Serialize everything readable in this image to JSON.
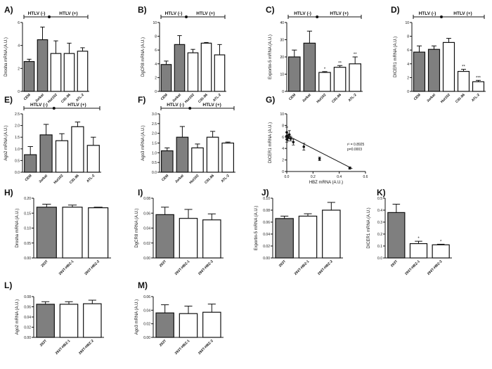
{
  "figure": {
    "title": "HTLV-1 miRNA machinery figure"
  },
  "colors": {
    "gray": "#7f7f7f",
    "white": "#ffffff",
    "ink": "#111111"
  },
  "chart_data": [
    {
      "id": "A",
      "label": "A)",
      "type": "bar",
      "ylabel": "Drosha mRNA (A.U.)",
      "ylim": [
        0,
        6
      ],
      "yticks": [
        0,
        2,
        4,
        6
      ],
      "categories": [
        "CEM",
        "Jurkat",
        "Hut102",
        "C91-86",
        "ATL-2"
      ],
      "values": [
        2.6,
        4.5,
        3.3,
        3.3,
        3.5
      ],
      "errors": [
        0.2,
        1.1,
        1.1,
        0.9,
        0.3
      ],
      "fill": [
        "gray",
        "gray",
        "white",
        "white",
        "white"
      ],
      "significance": [
        "",
        "",
        "",
        "",
        ""
      ],
      "groups": [
        {
          "label": "HTLV (-)",
          "from": 0,
          "to": 1
        },
        {
          "label": "HTLV (+)",
          "from": 2,
          "to": 4
        }
      ]
    },
    {
      "id": "B",
      "label": "B)",
      "type": "bar",
      "ylabel": "DgCR8 mRNA (A.U.)",
      "ylim": [
        0,
        10
      ],
      "yticks": [
        0,
        2,
        4,
        6,
        8,
        10
      ],
      "categories": [
        "CEM",
        "Jurkat",
        "Hut102",
        "C91-86",
        "ATL-2"
      ],
      "values": [
        3.9,
        6.8,
        5.6,
        7.0,
        5.3
      ],
      "errors": [
        0.5,
        1.3,
        0.5,
        0.1,
        1.5
      ],
      "fill": [
        "gray",
        "gray",
        "white",
        "white",
        "white"
      ],
      "significance": [
        "",
        "",
        "",
        "",
        ""
      ],
      "groups": [
        {
          "label": "HTLV (-)",
          "from": 0,
          "to": 1
        },
        {
          "label": "HTLV (+)",
          "from": 2,
          "to": 4
        }
      ]
    },
    {
      "id": "C",
      "label": "C)",
      "type": "bar",
      "ylabel": "Exportin-5 mRNA (A.U.)",
      "ylim": [
        0,
        40
      ],
      "yticks": [
        0,
        10,
        20,
        30,
        40
      ],
      "categories": [
        "CEM",
        "Jurkat",
        "Hut102",
        "C91-86",
        "ATL-2"
      ],
      "values": [
        20,
        28,
        11,
        14,
        16
      ],
      "errors": [
        4,
        7,
        0.5,
        1,
        4
      ],
      "fill": [
        "gray",
        "gray",
        "white",
        "white",
        "white"
      ],
      "significance": [
        "",
        "",
        "*",
        "**",
        "**"
      ],
      "groups": [
        {
          "label": "HTLV (-)",
          "from": 0,
          "to": 1
        },
        {
          "label": "HTLV (+)",
          "from": 2,
          "to": 4
        }
      ]
    },
    {
      "id": "D",
      "label": "D)",
      "type": "bar",
      "ylabel": "DICER1 mRNA (A.U.)",
      "ylim": [
        0,
        10
      ],
      "yticks": [
        0,
        2,
        4,
        6,
        8,
        10
      ],
      "categories": [
        "CEM",
        "Jurkat",
        "Hut102",
        "C91-86",
        "ATL-2"
      ],
      "values": [
        5.7,
        6.1,
        7.1,
        2.9,
        1.4
      ],
      "errors": [
        0.9,
        0.5,
        0.6,
        0.3,
        0.2
      ],
      "fill": [
        "gray",
        "gray",
        "white",
        "white",
        "white"
      ],
      "significance": [
        "",
        "",
        "",
        "**",
        "***"
      ],
      "groups": [
        {
          "label": "HTLV (-)",
          "from": 0,
          "to": 1
        },
        {
          "label": "HTLV (+)",
          "from": 2,
          "to": 4
        }
      ]
    },
    {
      "id": "E",
      "label": "E)",
      "type": "bar",
      "ylabel": "Ago2 mRNA (A.U.)",
      "ylim": [
        0,
        2.5
      ],
      "yticks": [
        0,
        0.5,
        1.0,
        1.5,
        2.0,
        2.5
      ],
      "categories": [
        "CEM",
        "Jurkat",
        "Hut102",
        "C91-86",
        "ATL-2"
      ],
      "values": [
        0.75,
        1.6,
        1.35,
        1.95,
        1.15
      ],
      "errors": [
        0.35,
        0.45,
        0.3,
        0.2,
        0.35
      ],
      "fill": [
        "gray",
        "gray",
        "white",
        "white",
        "white"
      ],
      "significance": [
        "",
        "",
        "",
        "",
        ""
      ],
      "groups": [
        {
          "label": "HTLV (-)",
          "from": 0,
          "to": 1
        },
        {
          "label": "HTLV (+)",
          "from": 2,
          "to": 4
        }
      ]
    },
    {
      "id": "F",
      "label": "F)",
      "type": "bar",
      "ylabel": "Ago3 mRNA (A.U.)",
      "ylim": [
        0,
        3.0
      ],
      "yticks": [
        0,
        0.5,
        1.0,
        1.5,
        2.0,
        2.5,
        3.0
      ],
      "categories": [
        "CEM",
        "Jurkat",
        "Hut102",
        "C91-86",
        "ATL-2"
      ],
      "values": [
        1.1,
        1.8,
        1.25,
        1.8,
        1.5
      ],
      "errors": [
        0.15,
        0.55,
        0.2,
        0.3,
        0.05
      ],
      "fill": [
        "gray",
        "gray",
        "white",
        "white",
        "white"
      ],
      "significance": [
        "",
        "",
        "",
        "",
        ""
      ],
      "groups": [
        {
          "label": "HTLV (-)",
          "from": 0,
          "to": 1
        },
        {
          "label": "HTLV (+)",
          "from": 2,
          "to": 4
        }
      ]
    },
    {
      "id": "G",
      "label": "G)",
      "type": "scatter",
      "ylabel": "DICER1 mRNA (A.U.)",
      "xlabel": "HBZ mRNA (A.U.)",
      "xlim": [
        0,
        0.6
      ],
      "ylim": [
        0,
        10
      ],
      "xticks": [
        0.0,
        0.2,
        0.4,
        0.6
      ],
      "yticks": [
        0,
        2,
        4,
        6,
        8,
        10
      ],
      "x": [
        0.0,
        0.0,
        0.0,
        0.01,
        0.02,
        0.03,
        0.05,
        0.13,
        0.25,
        0.48
      ],
      "y": [
        6.8,
        6.2,
        5.6,
        5.9,
        6.4,
        5.7,
        5.1,
        4.3,
        2.2,
        0.6
      ],
      "yerr": [
        0.9,
        0.6,
        0.5,
        0.6,
        0.7,
        0.4,
        0.5,
        0.6,
        0.3,
        0.2
      ],
      "fit": {
        "x": [
          0.0,
          0.5
        ],
        "y": [
          6.3,
          0.5
        ]
      },
      "annotation": [
        "r² = 0.8925",
        "p=0.0003"
      ]
    },
    {
      "id": "H",
      "label": "H)",
      "type": "bar",
      "ylabel": "Drosha mRNA (A.U.)",
      "ylim": [
        0,
        0.2
      ],
      "yticks": [
        0.0,
        0.05,
        0.1,
        0.15,
        0.2
      ],
      "categories": [
        "293T",
        "293T-HBZ-1",
        "293T-HBZ-2"
      ],
      "values": [
        0.17,
        0.17,
        0.168
      ],
      "errors": [
        0.01,
        0.007,
        0.002
      ],
      "fill": [
        "gray",
        "white",
        "white"
      ],
      "significance": [
        "",
        "",
        ""
      ]
    },
    {
      "id": "I",
      "label": "I)",
      "type": "bar",
      "ylabel": "DgCR8 mRNA (A.U.)",
      "ylim": [
        0,
        0.08
      ],
      "yticks": [
        0.0,
        0.02,
        0.04,
        0.06,
        0.08
      ],
      "categories": [
        "293T",
        "293T-HBZ-1",
        "293T-HBZ-2"
      ],
      "values": [
        0.058,
        0.053,
        0.051
      ],
      "errors": [
        0.01,
        0.012,
        0.008
      ],
      "fill": [
        "gray",
        "white",
        "white"
      ],
      "significance": [
        "",
        "",
        ""
      ]
    },
    {
      "id": "J",
      "label": "J)",
      "type": "bar",
      "ylabel": "Exportin-5 mRNA (A.U.)",
      "ylim": [
        0,
        0.1
      ],
      "yticks": [
        0.0,
        0.02,
        0.04,
        0.06,
        0.08,
        0.1
      ],
      "categories": [
        "293T",
        "293T-HBZ-1",
        "293T-HBZ-2"
      ],
      "values": [
        0.066,
        0.07,
        0.08
      ],
      "errors": [
        0.004,
        0.004,
        0.013
      ],
      "fill": [
        "gray",
        "white",
        "white"
      ],
      "significance": [
        "",
        "",
        ""
      ]
    },
    {
      "id": "K",
      "label": "K)",
      "type": "bar",
      "ylabel": "DICER1 mRNA (A.U.)",
      "ylim": [
        0,
        0.5
      ],
      "yticks": [
        0.0,
        0.1,
        0.2,
        0.3,
        0.4,
        0.5
      ],
      "categories": [
        "293T",
        "293T-HBZ-1",
        "293T-HBZ-2"
      ],
      "values": [
        0.38,
        0.12,
        0.11
      ],
      "errors": [
        0.07,
        0.02,
        0.005
      ],
      "fill": [
        "gray",
        "white",
        "white"
      ],
      "significance": [
        "",
        "*",
        "*"
      ]
    },
    {
      "id": "L",
      "label": "L)",
      "type": "bar",
      "ylabel": "Ago2 mRNA (A.U.)",
      "ylim": [
        0,
        0.08
      ],
      "yticks": [
        0.0,
        0.02,
        0.04,
        0.06,
        0.08
      ],
      "categories": [
        "293T",
        "293T-HBZ-1",
        "293T-HBZ-2"
      ],
      "values": [
        0.065,
        0.065,
        0.066
      ],
      "errors": [
        0.005,
        0.005,
        0.007
      ],
      "fill": [
        "gray",
        "white",
        "white"
      ],
      "significance": [
        "",
        "",
        ""
      ]
    },
    {
      "id": "M",
      "label": "M)",
      "type": "bar",
      "ylabel": "Ago3 mRNA (A.U.)",
      "ylim": [
        0,
        0.06
      ],
      "yticks": [
        0.0,
        0.02,
        0.04,
        0.06
      ],
      "categories": [
        "293T",
        "293T-HBZ-1",
        "293T-HBZ-2"
      ],
      "values": [
        0.036,
        0.035,
        0.037
      ],
      "errors": [
        0.012,
        0.011,
        0.012
      ],
      "fill": [
        "gray",
        "white",
        "white"
      ],
      "significance": [
        "",
        "",
        ""
      ]
    }
  ]
}
